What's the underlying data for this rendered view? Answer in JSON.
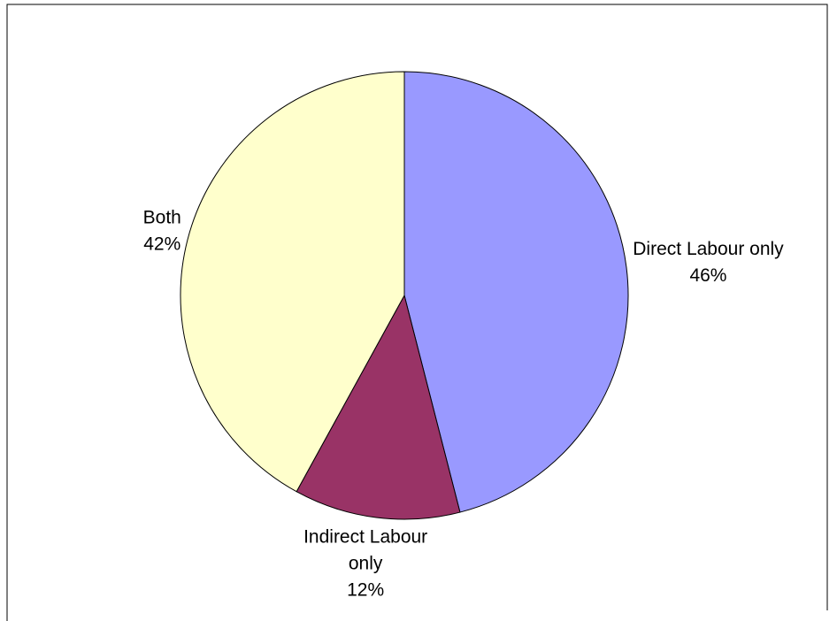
{
  "chart_data": {
    "type": "pie",
    "categories": [
      "Direct Labour only",
      "Indirect Labour only",
      "Both"
    ],
    "values": [
      46,
      12,
      42
    ],
    "value_labels": [
      "46%",
      "12%",
      "42%"
    ],
    "colors": [
      "#9999ff",
      "#993366",
      "#ffffcc"
    ]
  }
}
